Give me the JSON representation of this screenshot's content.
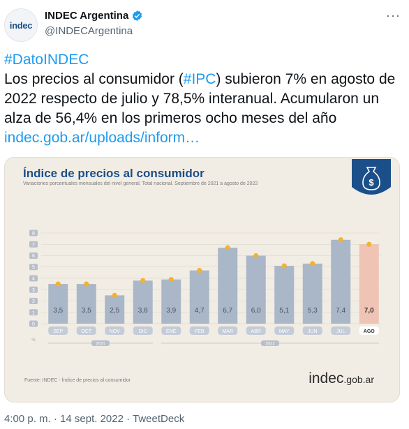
{
  "tweet": {
    "avatar_text": "indec",
    "display_name": "INDEC Argentina",
    "handle": "@INDECArgentina",
    "hashtag": "#DatoINDEC",
    "text_1": "Los precios al consumidor (",
    "hashtag_ipc": "#IPC",
    "text_2": ") subieron 7% en agosto de 2022 respecto de julio y 78,5% interanual. Acumularon un alza de 56,4% en los primeros ocho meses del año ",
    "link": "indec.gob.ar/uploads/inform…",
    "timestamp": "4:00 p. m. · 14 sept. 2022 · TweetDeck"
  },
  "card": {
    "title": "Índice de precios al consumidor",
    "subtitle": "Variaciones porcentuales mensuales del nivel general. Total nacional. Septiembre de 2021 a agosto de 2022",
    "source": "Fuente: INDEC - Índice de precios al consumidor",
    "logo_main": "indec",
    "logo_suffix": ".gob.ar",
    "emblem_symbol": "$"
  },
  "chart_data": {
    "type": "bar",
    "title": "Índice de precios al consumidor",
    "subtitle": "Variaciones porcentuales mensuales del nivel general. Total nacional. Septiembre de 2021 a agosto de 2022",
    "categories": [
      "SEP",
      "OCT",
      "NOV",
      "DIC",
      "ENE",
      "FEB",
      "MAR",
      "ABR",
      "MAY",
      "JUN",
      "JUL",
      "AGO"
    ],
    "values": [
      3.5,
      3.5,
      2.5,
      3.8,
      3.9,
      4.7,
      6.7,
      6.0,
      5.1,
      5.3,
      7.4,
      7.0
    ],
    "value_labels": [
      "3,5",
      "3,5",
      "2,5",
      "3,8",
      "3,9",
      "4,7",
      "6,7",
      "6,0",
      "5,1",
      "5,3",
      "7,4",
      "7,0"
    ],
    "yticks": [
      "0",
      "1",
      "2",
      "3",
      "4",
      "5",
      "6",
      "7",
      "8"
    ],
    "unit_label": "%",
    "ylim": [
      0,
      8
    ],
    "year_groups": [
      {
        "label": "2021",
        "start": 0,
        "end": 3
      },
      {
        "label": "2022",
        "start": 4,
        "end": 11
      }
    ],
    "highlight_index": 11,
    "colors": {
      "bar": "#a9b7c8",
      "highlight": "#f0c4b4",
      "dot": "#f2b233",
      "title": "#1b4f8a"
    }
  }
}
